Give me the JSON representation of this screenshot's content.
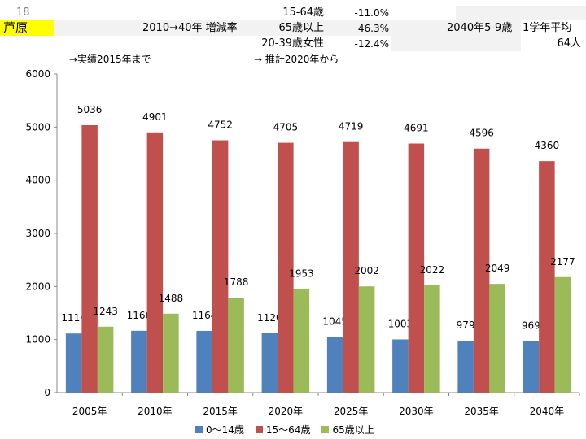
{
  "header": {
    "row_number": "18",
    "city": "芦原",
    "change_label": "2010→40年 増減率",
    "age_15_64": "15-64歳",
    "val_15_64": "-11.0%",
    "age_65_plus": "65歳以上",
    "val_65_plus": "46.3%",
    "women_20_39": "20-39歳女性",
    "val_women": "-12.4%",
    "avg_label_a": "2040年5-9歳",
    "avg_label_b": "1学年平均",
    "avg_value": "64人",
    "note_actual": "→実績2015年まで",
    "note_forecast": "→ 推計2020年から"
  },
  "colors": {
    "highlight": "#ffff00",
    "s1": "#4f81bd",
    "s2": "#c0504d",
    "s3": "#9bbb59"
  },
  "chart_data": {
    "type": "bar",
    "categories": [
      "2005年",
      "2010年",
      "2015年",
      "2020年",
      "2025年",
      "2030年",
      "2035年",
      "2040年"
    ],
    "series": [
      {
        "name": "0～14歳",
        "values": [
          1114,
          1166,
          1164,
          1120,
          1045,
          1003,
          979,
          969
        ]
      },
      {
        "name": "15～64歳",
        "values": [
          5036,
          4901,
          4752,
          4705,
          4719,
          4691,
          4596,
          4360
        ]
      },
      {
        "name": "65歳以上",
        "values": [
          1243,
          1488,
          1788,
          1953,
          2002,
          2022,
          2049,
          2177
        ]
      }
    ],
    "ylim": [
      0,
      6000
    ],
    "yticks": [
      0,
      1000,
      2000,
      3000,
      4000,
      5000,
      6000
    ],
    "title": "",
    "xlabel": "",
    "ylabel": "",
    "grid": false,
    "legend": "bottom"
  }
}
